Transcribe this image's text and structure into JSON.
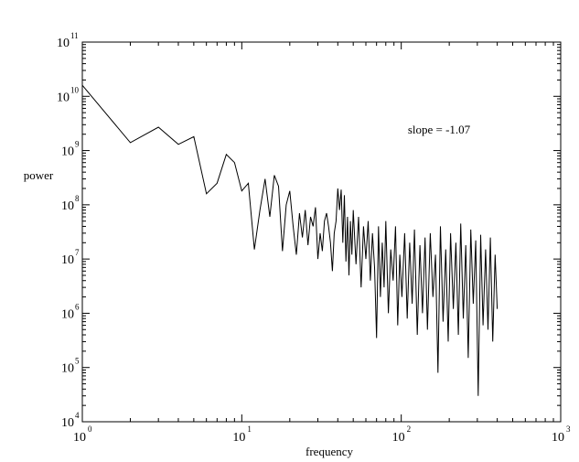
{
  "chart_data": {
    "type": "line",
    "title": "",
    "xlabel": "frequency",
    "ylabel": "power",
    "xscale": "log",
    "yscale": "log",
    "xlim": [
      1,
      1000
    ],
    "ylim": [
      10000,
      100000000000
    ],
    "grid": false,
    "legend": "none",
    "line_color": "#000000",
    "x_ticks": [
      {
        "base": "10",
        "exp": "0",
        "value": 1
      },
      {
        "base": "10",
        "exp": "1",
        "value": 10
      },
      {
        "base": "10",
        "exp": "2",
        "value": 100
      },
      {
        "base": "10",
        "exp": "3",
        "value": 1000
      }
    ],
    "y_ticks": [
      {
        "base": "10",
        "exp": "4",
        "value": 10000
      },
      {
        "base": "10",
        "exp": "5",
        "value": 100000
      },
      {
        "base": "10",
        "exp": "6",
        "value": 1000000
      },
      {
        "base": "10",
        "exp": "7",
        "value": 10000000
      },
      {
        "base": "10",
        "exp": "8",
        "value": 100000000
      },
      {
        "base": "10",
        "exp": "9",
        "value": 1000000000
      },
      {
        "base": "10",
        "exp": "10",
        "value": 10000000000
      },
      {
        "base": "10",
        "exp": "11",
        "value": 100000000000
      }
    ],
    "annotation": "slope = -1.07",
    "series": [
      {
        "x": [
          1,
          2,
          3,
          4,
          5,
          6,
          7,
          8,
          9,
          10,
          11,
          12,
          13,
          14,
          15,
          16,
          17,
          18,
          19,
          20,
          21,
          22,
          23,
          24,
          25,
          26,
          27,
          28,
          29,
          30,
          31,
          32,
          33,
          34,
          35,
          36,
          37,
          38,
          39,
          40,
          41,
          42,
          43,
          44,
          45,
          46,
          47,
          48,
          49,
          50,
          52,
          54,
          56,
          58,
          60,
          62,
          64,
          66,
          68,
          70,
          72,
          74,
          76,
          78,
          80,
          83,
          86,
          89,
          92,
          95,
          98,
          101,
          105,
          109,
          113,
          117,
          121,
          126,
          131,
          136,
          141,
          146,
          152,
          158,
          164,
          170,
          176,
          183,
          190,
          197,
          204,
          212,
          220,
          228,
          236,
          245,
          254,
          263,
          273,
          283,
          293,
          304,
          315,
          326,
          338,
          350,
          362,
          375,
          388,
          400
        ],
        "y": [
          16000000000,
          1400000000,
          2700000000,
          1300000000,
          1800000000,
          160000000,
          250000000,
          850000000,
          600000000,
          180000000,
          250000000,
          15000000,
          80000000,
          300000000,
          60000000,
          350000000,
          220000000,
          14000000,
          100000000,
          180000000,
          40000000,
          12000000,
          70000000,
          25000000,
          80000000,
          18000000,
          60000000,
          40000000,
          90000000,
          10000000,
          30000000,
          14000000,
          50000000,
          70000000,
          40000000,
          20000000,
          6000000,
          30000000,
          50000000,
          200000000,
          80000000,
          190000000,
          20000000,
          150000000,
          9000000,
          60000000,
          5000000,
          50000000,
          12000000,
          80000000,
          8000000,
          60000000,
          3000000,
          40000000,
          10000000,
          50000000,
          4000000,
          30000000,
          7000000,
          350000,
          40000000,
          2000000,
          20000000,
          3000000,
          50000000,
          1000000,
          15000000,
          4000000,
          40000000,
          600000,
          12000000,
          2000000,
          30000000,
          800000,
          20000000,
          1500000,
          35000000,
          400000,
          18000000,
          1000000,
          25000000,
          500000,
          30000000,
          2000000,
          12000000,
          80000,
          40000000,
          700000,
          15000000,
          300000,
          30000000,
          1200000,
          20000000,
          400000,
          45000000,
          800000,
          18000000,
          150000,
          35000000,
          1500000,
          22000000,
          30000,
          28000000,
          600000,
          15000000,
          500000,
          25000000,
          300000,
          12000000,
          1200000
        ]
      }
    ]
  }
}
